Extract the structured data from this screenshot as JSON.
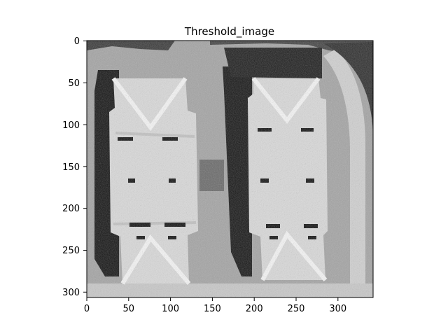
{
  "figure": {
    "title": "Threshold_image",
    "image_description_kind": "grayscale aerial image of two rectangular buildings with hip roofs, shadows, a curved road on the right"
  },
  "axes": {
    "x_ticks": [
      "0",
      "50",
      "100",
      "150",
      "200",
      "250",
      "300"
    ],
    "y_ticks": [
      "0",
      "50",
      "100",
      "150",
      "200",
      "250",
      "300"
    ],
    "x_range": [
      0,
      342
    ],
    "y_range": [
      0,
      307
    ],
    "y_inverted": true
  },
  "colors": {
    "background": "#ffffff",
    "axis": "#000000",
    "roof": "#d8d8d8",
    "roof_light": "#f2f2f2",
    "shadow": "#1a1a1a",
    "ground": "#9a9a9a"
  }
}
